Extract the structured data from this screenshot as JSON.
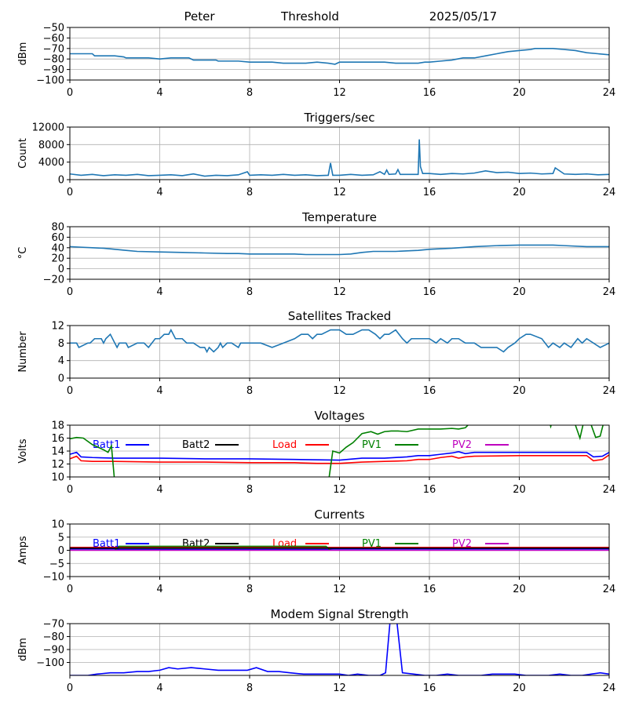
{
  "header": {
    "name": "Peter",
    "label": "Threshold",
    "date": "2025/05/17"
  },
  "chart_data": [
    {
      "type": "line",
      "title": "",
      "xlabel": "",
      "ylabel": "dBm",
      "xlim": [
        0,
        24
      ],
      "ylim": [
        -100,
        -50
      ],
      "xticks": [
        0,
        4,
        8,
        12,
        16,
        20,
        24
      ],
      "yticks": [
        -100,
        -90,
        -80,
        -70,
        -60,
        -50
      ],
      "grid": true,
      "series": [
        {
          "name": "",
          "color": "#1f77b4",
          "x": [
            0,
            0.5,
            1,
            1.1,
            1.8,
            2,
            2.4,
            2.5,
            3,
            3.5,
            4,
            4.5,
            5,
            5.3,
            5.5,
            6.5,
            6.6,
            7,
            7.5,
            8,
            8.5,
            9,
            9.5,
            10,
            10.5,
            11,
            11.5,
            11.8,
            12,
            12.5,
            13,
            13.5,
            14,
            14.5,
            15,
            15.5,
            15.8,
            16,
            16.5,
            17,
            17.5,
            18,
            18.5,
            19,
            19.5,
            20,
            20.5,
            20.7,
            21,
            21.5,
            22,
            22.5,
            23,
            23.5,
            24
          ],
          "y": [
            -75,
            -75,
            -75,
            -77,
            -77,
            -77,
            -78,
            -79,
            -79,
            -79,
            -80,
            -79,
            -79,
            -79,
            -81,
            -81,
            -82,
            -82,
            -82,
            -83,
            -83,
            -83,
            -84,
            -84,
            -84,
            -83,
            -84,
            -85,
            -83,
            -83,
            -83,
            -83,
            -83,
            -84,
            -84,
            -84,
            -83,
            -83,
            -82,
            -81,
            -79,
            -79,
            -77,
            -75,
            -73,
            -72,
            -71,
            -70,
            -70,
            -70,
            -71,
            -72,
            -74,
            -75,
            -76
          ]
        }
      ]
    },
    {
      "type": "line",
      "title": "Triggers/sec",
      "xlabel": "",
      "ylabel": "Count",
      "xlim": [
        0,
        24
      ],
      "ylim": [
        0,
        12000
      ],
      "xticks": [
        0,
        4,
        8,
        12,
        16,
        20,
        24
      ],
      "yticks": [
        0,
        4000,
        8000,
        12000
      ],
      "grid": true,
      "series": [
        {
          "name": "",
          "color": "#1f77b4",
          "x": [
            0,
            0.5,
            1,
            1.5,
            2,
            2.5,
            3,
            3.5,
            4,
            4.5,
            5,
            5.5,
            6,
            6.5,
            7,
            7.5,
            7.9,
            8,
            8.5,
            9,
            9.5,
            10,
            10.5,
            11,
            11.5,
            11.6,
            11.7,
            12,
            12.5,
            13,
            13.5,
            13.8,
            14,
            14.1,
            14.2,
            14.5,
            14.6,
            14.7,
            15,
            15.5,
            15.55,
            15.6,
            15.7,
            16,
            16.5,
            17,
            17.5,
            18,
            18.5,
            19,
            19.5,
            20,
            20.5,
            21,
            21.5,
            21.6,
            22,
            22.5,
            23,
            23.5,
            24
          ],
          "y": [
            1300,
            1000,
            1200,
            900,
            1100,
            1000,
            1200,
            900,
            1000,
            1100,
            900,
            1300,
            800,
            1000,
            900,
            1100,
            1800,
            1000,
            1100,
            1000,
            1200,
            1000,
            1100,
            900,
            1000,
            3800,
            1000,
            1000,
            1200,
            1000,
            1100,
            1800,
            1200,
            2200,
            1200,
            1300,
            2300,
            1200,
            1200,
            1200,
            9200,
            3000,
            1400,
            1400,
            1200,
            1400,
            1300,
            1500,
            2000,
            1600,
            1700,
            1400,
            1500,
            1300,
            1400,
            2700,
            1300,
            1200,
            1300,
            1100,
            1200
          ]
        }
      ]
    },
    {
      "type": "line",
      "title": "Temperature",
      "xlabel": "",
      "ylabel": "°C",
      "xlim": [
        0,
        24
      ],
      "ylim": [
        -20,
        80
      ],
      "xticks": [
        0,
        4,
        8,
        12,
        16,
        20,
        24
      ],
      "yticks": [
        -20,
        0,
        20,
        40,
        60,
        80
      ],
      "grid": true,
      "series": [
        {
          "name": "",
          "color": "#1f77b4",
          "x": [
            0,
            0.5,
            1,
            1.5,
            2,
            2.5,
            3,
            4,
            5,
            6,
            7,
            7.5,
            8,
            9,
            10,
            10.5,
            11,
            12,
            12.5,
            13,
            13.5,
            14,
            14.5,
            15,
            15.5,
            16,
            17,
            18,
            19,
            20,
            21,
            21.5,
            22,
            23,
            24
          ],
          "y": [
            42,
            41,
            40,
            39,
            37,
            35,
            33,
            32,
            31,
            30,
            29,
            29,
            28,
            28,
            28,
            27,
            27,
            27,
            28,
            31,
            33,
            33,
            33,
            34,
            35,
            37,
            39,
            42,
            44,
            45,
            45,
            45,
            44,
            42,
            42
          ]
        }
      ]
    },
    {
      "type": "line",
      "title": "Satellites Tracked",
      "xlabel": "",
      "ylabel": "Number",
      "xlim": [
        0,
        24
      ],
      "ylim": [
        0,
        12
      ],
      "xticks": [
        0,
        4,
        8,
        12,
        16,
        20,
        24
      ],
      "yticks": [
        0,
        4,
        8,
        12
      ],
      "grid": true,
      "series": [
        {
          "name": "",
          "color": "#1f77b4",
          "x": [
            0,
            0.3,
            0.4,
            0.8,
            0.9,
            1.1,
            1.4,
            1.5,
            1.6,
            1.8,
            2.0,
            2.1,
            2.2,
            2.5,
            2.6,
            3.0,
            3.3,
            3.5,
            3.8,
            4.0,
            4.2,
            4.4,
            4.5,
            4.6,
            4.7,
            5.0,
            5.2,
            5.5,
            5.8,
            6.0,
            6.1,
            6.2,
            6.4,
            6.6,
            6.7,
            6.8,
            7.0,
            7.2,
            7.5,
            7.6,
            8.0,
            8.5,
            9.0,
            9.5,
            10.0,
            10.3,
            10.6,
            10.8,
            11.0,
            11.2,
            11.6,
            12.0,
            12.3,
            12.6,
            13.0,
            13.3,
            13.6,
            13.8,
            14.0,
            14.2,
            14.5,
            14.8,
            15.0,
            15.2,
            15.5,
            16.0,
            16.3,
            16.5,
            16.8,
            17.0,
            17.3,
            17.6,
            18.0,
            18.3,
            18.6,
            19.0,
            19.3,
            19.5,
            19.8,
            20.0,
            20.3,
            20.5,
            21.0,
            21.3,
            21.5,
            21.8,
            22.0,
            22.3,
            22.6,
            22.8,
            23.0,
            23.3,
            23.6,
            24.0
          ],
          "y": [
            8,
            8,
            7,
            8,
            8,
            9,
            9,
            8,
            9,
            10,
            8,
            7,
            8,
            8,
            7,
            8,
            8,
            7,
            9,
            9,
            10,
            10,
            11,
            10,
            9,
            9,
            8,
            8,
            7,
            7,
            6,
            7,
            6,
            7,
            8,
            7,
            8,
            8,
            7,
            8,
            8,
            8,
            7,
            8,
            9,
            10,
            10,
            9,
            10,
            10,
            11,
            11,
            10,
            10,
            11,
            11,
            10,
            9,
            10,
            10,
            11,
            9,
            8,
            9,
            9,
            9,
            8,
            9,
            8,
            9,
            9,
            8,
            8,
            7,
            7,
            7,
            6,
            7,
            8,
            9,
            10,
            10,
            9,
            7,
            8,
            7,
            8,
            7,
            9,
            8,
            9,
            8,
            7,
            8
          ]
        }
      ]
    },
    {
      "type": "line",
      "title": "Voltages",
      "xlabel": "",
      "ylabel": "Volts",
      "xlim": [
        0,
        24
      ],
      "ylim": [
        10,
        18
      ],
      "xticks": [
        0,
        4,
        8,
        12,
        16,
        20,
        24
      ],
      "yticks": [
        10,
        12,
        14,
        16,
        18
      ],
      "grid": true,
      "legend": [
        {
          "name": "Batt1",
          "color": "#0000ff"
        },
        {
          "name": "Batt2",
          "color": "#000000"
        },
        {
          "name": "Load",
          "color": "#ff0000"
        },
        {
          "name": "PV1",
          "color": "#008000"
        },
        {
          "name": "PV2",
          "color": "#bf00bf"
        }
      ],
      "series": [
        {
          "name": "Batt1",
          "color": "#0000ff",
          "x": [
            0,
            0.3,
            0.5,
            1,
            2,
            4,
            6,
            8,
            10,
            12,
            13,
            14,
            15,
            15.5,
            16,
            16.5,
            17,
            17.3,
            17.6,
            18,
            20,
            22,
            23,
            23.3,
            23.7,
            24
          ],
          "y": [
            13.5,
            13.8,
            13.1,
            13.0,
            12.9,
            12.9,
            12.8,
            12.8,
            12.7,
            12.6,
            12.9,
            12.9,
            13.1,
            13.3,
            13.3,
            13.5,
            13.7,
            13.9,
            13.6,
            13.8,
            13.8,
            13.8,
            13.8,
            13.1,
            13.2,
            13.8
          ]
        },
        {
          "name": "Load",
          "color": "#ff0000",
          "x": [
            0,
            0.3,
            0.5,
            1,
            2,
            4,
            6,
            8,
            10,
            11,
            12,
            13,
            14,
            15,
            15.5,
            16,
            16.5,
            17,
            17.3,
            17.6,
            18,
            20,
            22,
            23,
            23.3,
            23.7,
            24
          ],
          "y": [
            12.8,
            13.2,
            12.5,
            12.4,
            12.4,
            12.3,
            12.3,
            12.2,
            12.2,
            12.1,
            12.1,
            12.3,
            12.4,
            12.5,
            12.7,
            12.7,
            13.0,
            13.2,
            12.9,
            13.1,
            13.2,
            13.3,
            13.3,
            13.3,
            12.5,
            12.7,
            13.4
          ]
        },
        {
          "name": "PV1",
          "color": "#008000",
          "x": [
            0,
            0.3,
            0.6,
            1,
            1.5,
            1.7,
            1.85,
            2.0,
            11.5,
            11.7,
            12,
            12.3,
            12.6,
            13,
            13.4,
            13.7,
            14,
            14.3,
            14.6,
            15,
            15.5,
            16,
            16.5,
            17,
            17.3,
            17.6,
            18
          ],
          "y": [
            15.9,
            16.1,
            16.0,
            15.0,
            14.2,
            13.8,
            14.8,
            9.0,
            9.0,
            14.0,
            13.7,
            14.6,
            15.3,
            16.7,
            17.0,
            16.6,
            17.0,
            17.1,
            17.1,
            17.0,
            17.4,
            17.4,
            17.4,
            17.5,
            17.4,
            17.6,
            19.0
          ]
        },
        {
          "name": "PV1",
          "color": "#008000",
          "x": [
            21.3,
            21.4,
            21.5
          ],
          "y": [
            19.0,
            17.8,
            19.0
          ]
        },
        {
          "name": "PV1",
          "color": "#008000",
          "x": [
            22.4,
            22.7,
            22.9,
            23.1,
            23.4,
            23.6,
            23.8
          ],
          "y": [
            19.0,
            16.0,
            19.0,
            19.0,
            16.1,
            16.3,
            19.0
          ]
        }
      ]
    },
    {
      "type": "line",
      "title": "Currents",
      "xlabel": "",
      "ylabel": "Amps",
      "xlim": [
        0,
        24
      ],
      "ylim": [
        -10,
        10
      ],
      "xticks": [
        0,
        4,
        8,
        12,
        16,
        20,
        24
      ],
      "yticks": [
        -10,
        -5,
        0,
        5,
        10
      ],
      "grid": true,
      "legend": [
        {
          "name": "Batt1",
          "color": "#0000ff"
        },
        {
          "name": "Batt2",
          "color": "#000000"
        },
        {
          "name": "Load",
          "color": "#ff0000"
        },
        {
          "name": "PV1",
          "color": "#008000"
        },
        {
          "name": "PV2",
          "color": "#bf00bf"
        }
      ],
      "series": [
        {
          "name": "Load",
          "color": "#ff0000",
          "x": [
            0,
            4,
            8,
            12,
            16,
            20,
            24
          ],
          "y": [
            1.1,
            1.1,
            1.1,
            1.1,
            1.1,
            1.1,
            1.1
          ]
        },
        {
          "name": "Batt1",
          "color": "#0000ff",
          "x": [
            0,
            2,
            2.2,
            11.5,
            11.7,
            24
          ],
          "y": [
            0.5,
            0.5,
            0.3,
            0.3,
            0.5,
            0.5
          ]
        },
        {
          "name": "PV1",
          "color": "#008000",
          "x": [
            2.0,
            2.2,
            11.4,
            11.6
          ],
          "y": [
            0.0,
            1.5,
            1.5,
            0.0
          ]
        },
        {
          "name": "PV2",
          "color": "#bf00bf",
          "x": [
            0,
            24
          ],
          "y": [
            0.0,
            0.0
          ]
        },
        {
          "name": "Batt2",
          "color": "#000000",
          "x": [
            0,
            24
          ],
          "y": [
            0.8,
            0.8
          ]
        }
      ]
    },
    {
      "type": "line",
      "title": "Modem Signal Strength",
      "xlabel": "",
      "ylabel": "dBm",
      "xlim": [
        0,
        24
      ],
      "ylim": [
        -110,
        -70
      ],
      "xticks": [
        0,
        4,
        8,
        12,
        16,
        20,
        24
      ],
      "yticks": [
        -100,
        -90,
        -80,
        -70
      ],
      "grid": true,
      "series": [
        {
          "name": "",
          "color": "#0000ff",
          "x": [
            0,
            0.8,
            1.2,
            1.8,
            2.4,
            3,
            3.5,
            4,
            4.4,
            4.8,
            5.4,
            6,
            6.6,
            7.2,
            7.6,
            7.9,
            8.3,
            8.8,
            9.3,
            9.8,
            10.4,
            11,
            11.5,
            12,
            12.4,
            12.8,
            13.3,
            13.8,
            14.05,
            14.25,
            14.55,
            14.8,
            15.3,
            15.8,
            16.3,
            16.8,
            17.3,
            17.8,
            18.3,
            18.8,
            19.3,
            19.8,
            20.3,
            20.8,
            21.3,
            21.8,
            22.3,
            22.8,
            23.2,
            23.6,
            24
          ],
          "y": [
            -110,
            -110,
            -109,
            -108,
            -108,
            -107,
            -107,
            -106,
            -104,
            -105,
            -104,
            -105,
            -106,
            -106,
            -106,
            -106,
            -104,
            -107,
            -107,
            -108,
            -109,
            -109,
            -109,
            -109,
            -110,
            -109,
            -110,
            -110,
            -108,
            -68,
            -68,
            -108,
            -109,
            -110,
            -110,
            -109,
            -110,
            -110,
            -110,
            -109,
            -109,
            -109,
            -110,
            -110,
            -110,
            -109,
            -110,
            -110,
            -109,
            -108,
            -109
          ]
        }
      ]
    }
  ]
}
